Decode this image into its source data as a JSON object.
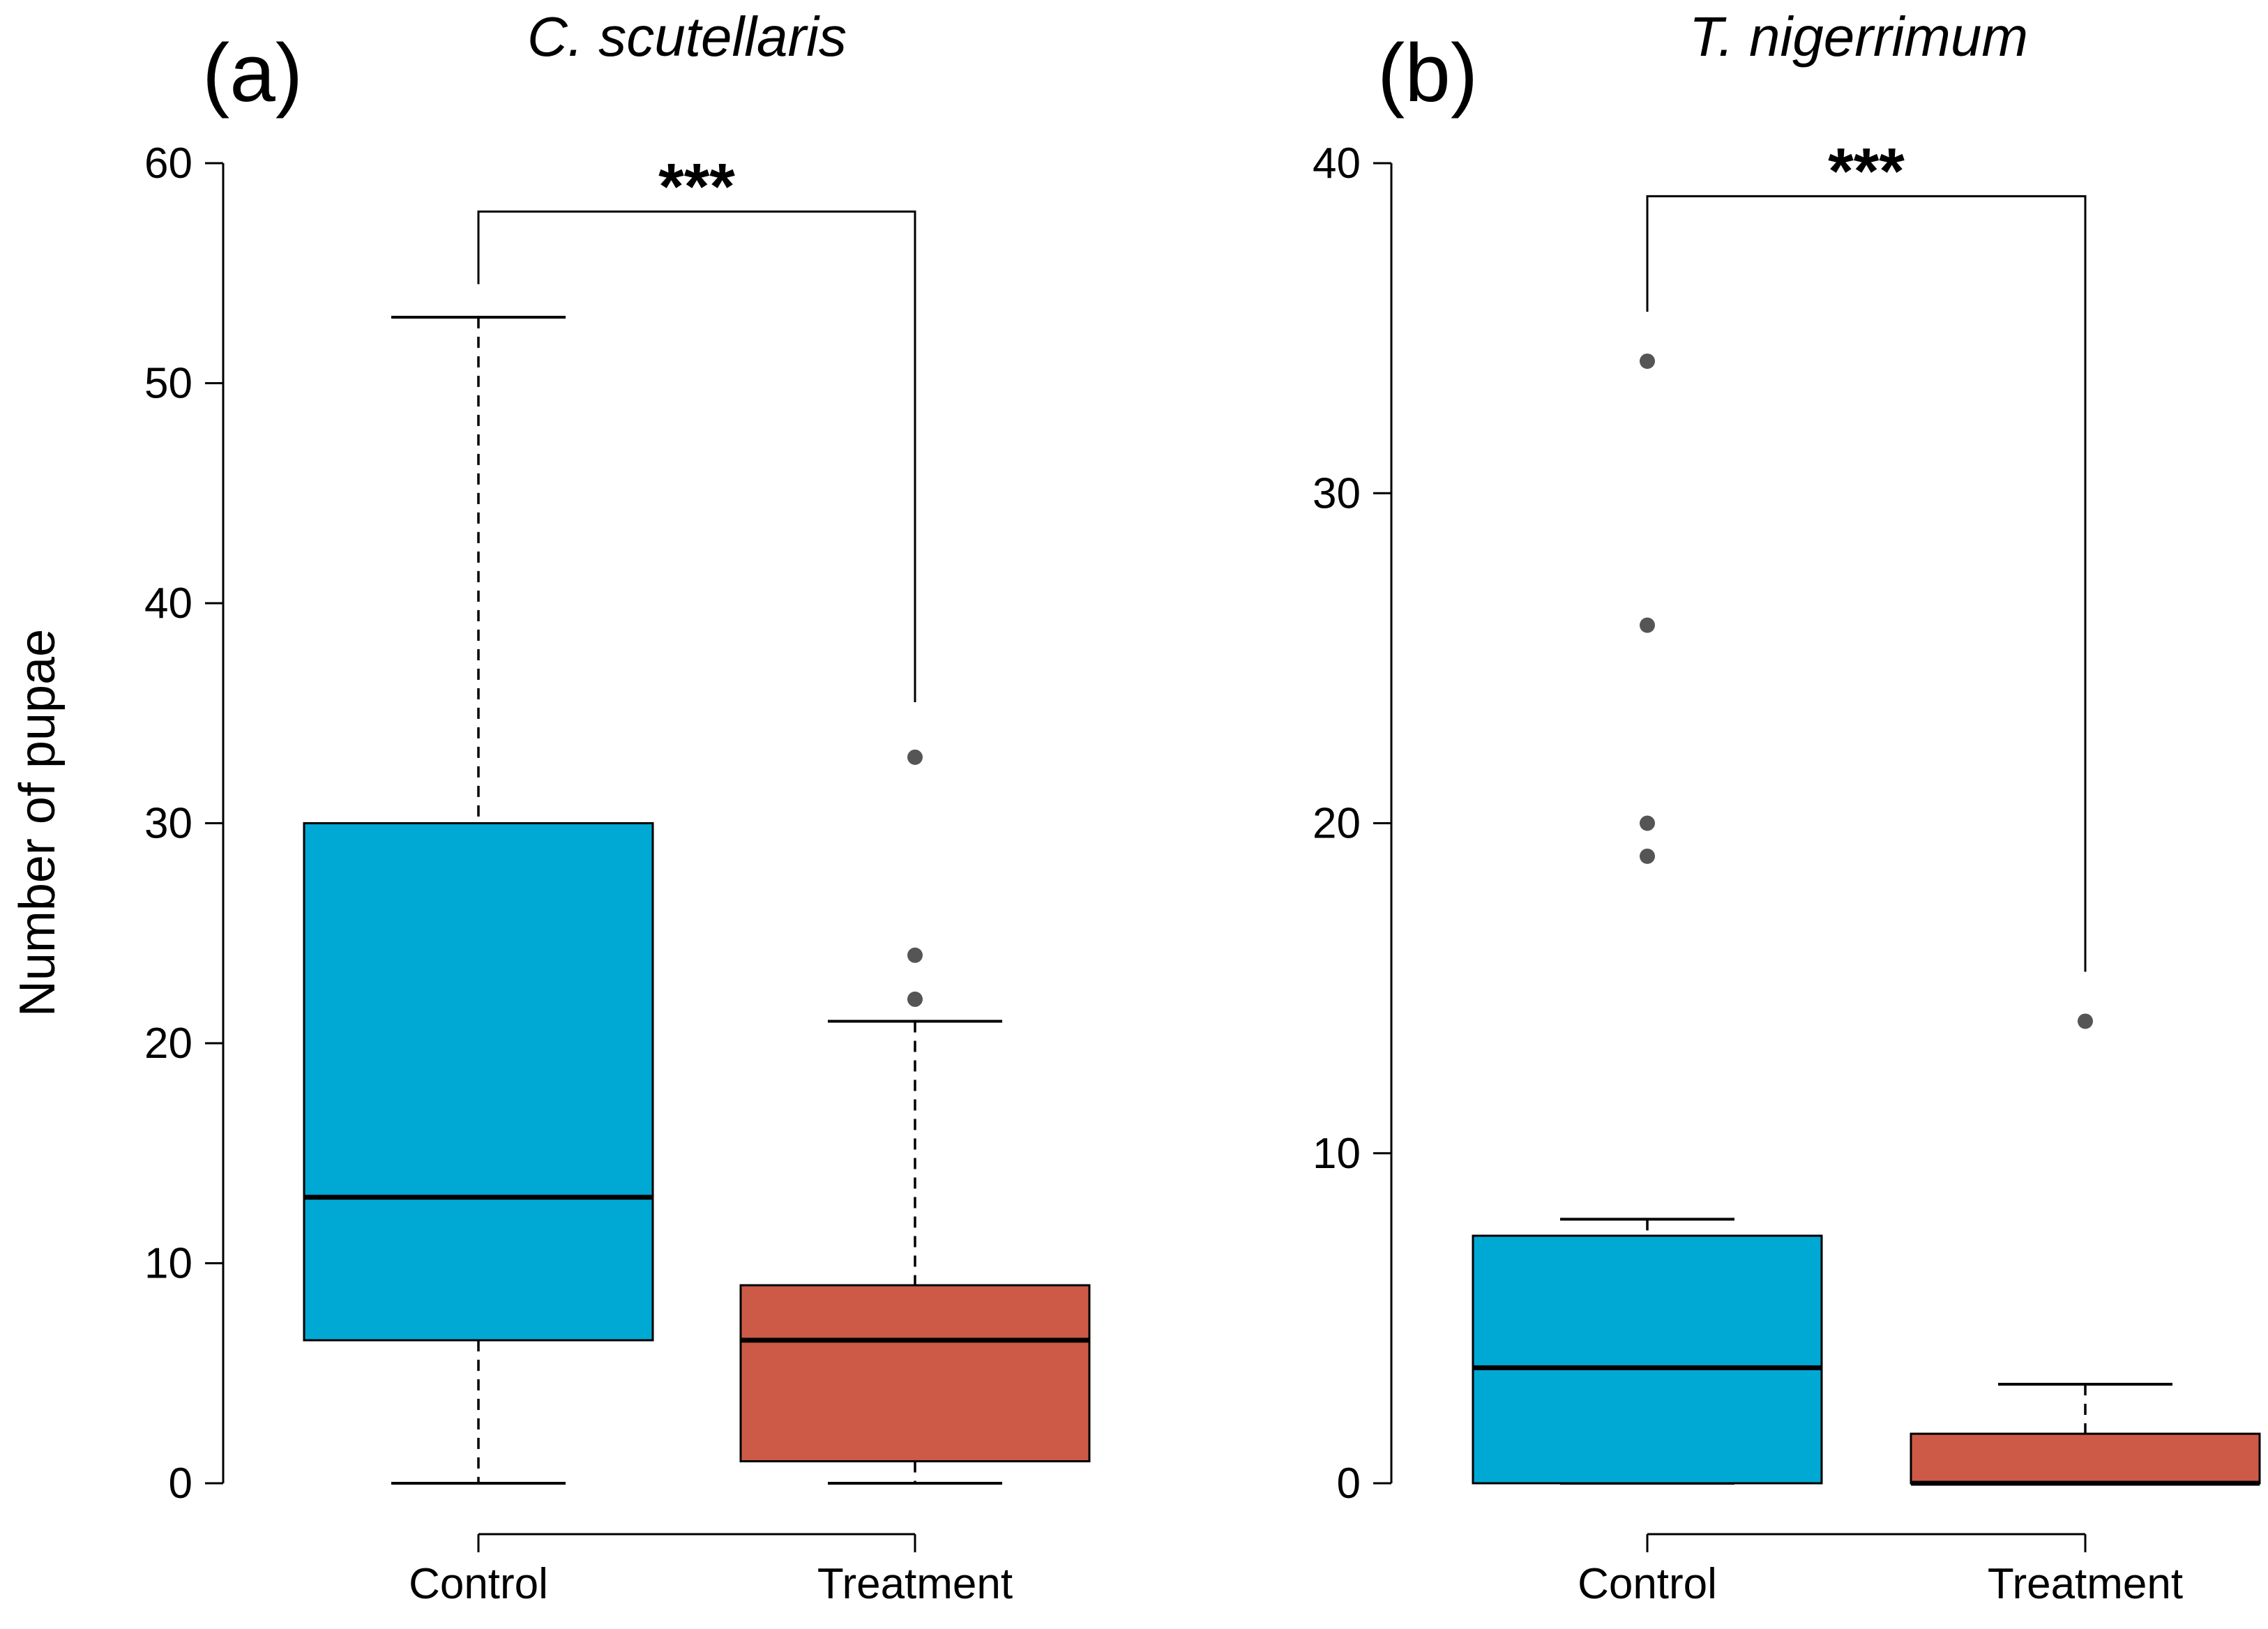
{
  "figure": {
    "ylabel": "Number of pupae"
  },
  "chart_data": [
    {
      "type": "box",
      "panel_label": "(a)",
      "title": "C. scutellaris",
      "categories": [
        "Control",
        "Treatment"
      ],
      "yticks": [
        0,
        10,
        20,
        30,
        40,
        50,
        60
      ],
      "ylim": [
        0,
        60
      ],
      "significance": "***",
      "bracket_y": [
        57.8,
        54.5,
        35.5
      ],
      "boxes": [
        {
          "name": "Control",
          "min": 0,
          "q1": 6.5,
          "median": 13,
          "q3": 30,
          "max": 53,
          "outliers": [],
          "color": "#00a9d4"
        },
        {
          "name": "Treatment",
          "min": 0,
          "q1": 1,
          "median": 6.5,
          "q3": 9,
          "max": 21,
          "outliers": [
            33,
            24,
            22
          ],
          "color": "#cc5a47"
        }
      ]
    },
    {
      "type": "box",
      "panel_label": "(b)",
      "title": "T. nigerrimum",
      "categories": [
        "Control",
        "Treatment"
      ],
      "yticks": [
        0,
        10,
        20,
        30,
        40
      ],
      "ylim": [
        0,
        40
      ],
      "significance": "***",
      "bracket_y": [
        39.0,
        35.5,
        15.5
      ],
      "boxes": [
        {
          "name": "Control",
          "min": 0,
          "q1": 0,
          "median": 3.5,
          "q3": 7.5,
          "max": 8,
          "outliers": [
            34,
            26,
            20,
            19
          ],
          "color": "#00a9d4"
        },
        {
          "name": "Treatment",
          "min": 0,
          "q1": 0,
          "median": 0,
          "q3": 1.5,
          "max": 3,
          "outliers": [
            14
          ],
          "color": "#cc5a47"
        }
      ]
    }
  ]
}
